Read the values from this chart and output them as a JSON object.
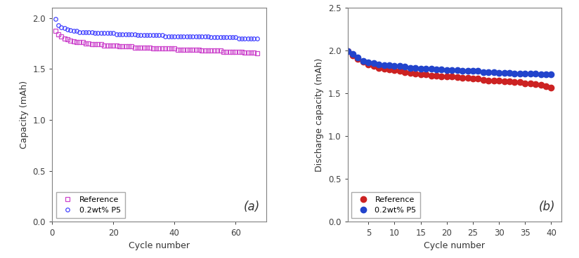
{
  "panel_a": {
    "ref_x": [
      1,
      2,
      3,
      4,
      5,
      6,
      7,
      8,
      9,
      10,
      11,
      12,
      13,
      14,
      15,
      16,
      17,
      18,
      19,
      20,
      21,
      22,
      23,
      24,
      25,
      26,
      27,
      28,
      29,
      30,
      31,
      32,
      33,
      34,
      35,
      36,
      37,
      38,
      39,
      40,
      41,
      42,
      43,
      44,
      45,
      46,
      47,
      48,
      49,
      50,
      51,
      52,
      53,
      54,
      55,
      56,
      57,
      58,
      59,
      60,
      61,
      62,
      63,
      64,
      65,
      66,
      67
    ],
    "ref_y": [
      1.87,
      1.84,
      1.82,
      1.8,
      1.79,
      1.78,
      1.77,
      1.76,
      1.76,
      1.76,
      1.75,
      1.75,
      1.74,
      1.74,
      1.74,
      1.74,
      1.73,
      1.73,
      1.73,
      1.73,
      1.73,
      1.72,
      1.72,
      1.72,
      1.72,
      1.72,
      1.71,
      1.71,
      1.71,
      1.71,
      1.71,
      1.71,
      1.7,
      1.7,
      1.7,
      1.7,
      1.7,
      1.7,
      1.7,
      1.7,
      1.69,
      1.69,
      1.69,
      1.69,
      1.69,
      1.69,
      1.69,
      1.69,
      1.68,
      1.68,
      1.68,
      1.68,
      1.68,
      1.68,
      1.68,
      1.67,
      1.67,
      1.67,
      1.67,
      1.67,
      1.67,
      1.67,
      1.66,
      1.66,
      1.66,
      1.66,
      1.65
    ],
    "p5_x": [
      1,
      2,
      3,
      4,
      5,
      6,
      7,
      8,
      9,
      10,
      11,
      12,
      13,
      14,
      15,
      16,
      17,
      18,
      19,
      20,
      21,
      22,
      23,
      24,
      25,
      26,
      27,
      28,
      29,
      30,
      31,
      32,
      33,
      34,
      35,
      36,
      37,
      38,
      39,
      40,
      41,
      42,
      43,
      44,
      45,
      46,
      47,
      48,
      49,
      50,
      51,
      52,
      53,
      54,
      55,
      56,
      57,
      58,
      59,
      60,
      61,
      62,
      63,
      64,
      65,
      66,
      67
    ],
    "p5_y": [
      1.99,
      1.93,
      1.91,
      1.9,
      1.89,
      1.88,
      1.87,
      1.87,
      1.86,
      1.86,
      1.86,
      1.86,
      1.86,
      1.85,
      1.85,
      1.85,
      1.85,
      1.85,
      1.85,
      1.85,
      1.84,
      1.84,
      1.84,
      1.84,
      1.84,
      1.84,
      1.84,
      1.83,
      1.83,
      1.83,
      1.83,
      1.83,
      1.83,
      1.83,
      1.83,
      1.83,
      1.82,
      1.82,
      1.82,
      1.82,
      1.82,
      1.82,
      1.82,
      1.82,
      1.82,
      1.82,
      1.82,
      1.82,
      1.82,
      1.82,
      1.82,
      1.81,
      1.81,
      1.81,
      1.81,
      1.81,
      1.81,
      1.81,
      1.81,
      1.81,
      1.8,
      1.8,
      1.8,
      1.8,
      1.8,
      1.8,
      1.8
    ],
    "ref_color": "#cc44cc",
    "p5_color": "#4444ff",
    "ref_marker": "s",
    "p5_marker": "o",
    "xlabel": "Cycle number",
    "ylabel": "Capacity (mAh)",
    "xlim": [
      0,
      70
    ],
    "ylim": [
      0.0,
      2.1
    ],
    "yticks": [
      0.0,
      0.5,
      1.0,
      1.5,
      2.0
    ],
    "xticks": [
      0,
      20,
      40,
      60
    ],
    "label_a": "(a)",
    "legend_ref": "Reference",
    "legend_p5": "0.2wt% P5"
  },
  "panel_b": {
    "ref_x": [
      1,
      2,
      3,
      4,
      5,
      6,
      7,
      8,
      9,
      10,
      11,
      12,
      13,
      14,
      15,
      16,
      17,
      18,
      19,
      20,
      21,
      22,
      23,
      24,
      25,
      26,
      27,
      28,
      29,
      30,
      31,
      32,
      33,
      34,
      35,
      36,
      37,
      38,
      39,
      40
    ],
    "ref_y": [
      1.99,
      1.94,
      1.9,
      1.87,
      1.84,
      1.82,
      1.8,
      1.79,
      1.78,
      1.77,
      1.76,
      1.75,
      1.74,
      1.73,
      1.72,
      1.72,
      1.71,
      1.71,
      1.7,
      1.7,
      1.7,
      1.69,
      1.68,
      1.68,
      1.67,
      1.67,
      1.66,
      1.65,
      1.65,
      1.65,
      1.64,
      1.64,
      1.63,
      1.63,
      1.62,
      1.62,
      1.61,
      1.6,
      1.58,
      1.57
    ],
    "p5_x": [
      1,
      2,
      3,
      4,
      5,
      6,
      7,
      8,
      9,
      10,
      11,
      12,
      13,
      14,
      15,
      16,
      17,
      18,
      19,
      20,
      21,
      22,
      23,
      24,
      25,
      26,
      27,
      28,
      29,
      30,
      31,
      32,
      33,
      34,
      35,
      36,
      37,
      38,
      39,
      40
    ],
    "p5_y": [
      1.99,
      1.96,
      1.92,
      1.88,
      1.86,
      1.85,
      1.84,
      1.83,
      1.83,
      1.82,
      1.82,
      1.81,
      1.8,
      1.8,
      1.79,
      1.79,
      1.79,
      1.78,
      1.78,
      1.77,
      1.77,
      1.77,
      1.76,
      1.76,
      1.76,
      1.76,
      1.75,
      1.75,
      1.75,
      1.74,
      1.74,
      1.74,
      1.73,
      1.73,
      1.73,
      1.73,
      1.73,
      1.72,
      1.72,
      1.72
    ],
    "ref_color": "#cc2222",
    "p5_color": "#2244cc",
    "ref_marker": "o",
    "p5_marker": "o",
    "xlabel": "Cycle number",
    "ylabel": "Discharge capacity (mAh)",
    "xlim": [
      1,
      42
    ],
    "ylim": [
      0.0,
      2.5
    ],
    "yticks": [
      0.0,
      0.5,
      1.0,
      1.5,
      2.0,
      2.5
    ],
    "xticks": [
      5,
      10,
      15,
      20,
      25,
      30,
      35,
      40
    ],
    "label_b": "(b)",
    "legend_ref": "Reference",
    "legend_p5": "0.2wt% P5"
  },
  "background_color": "#ffffff",
  "marker_size_a": 4,
  "marker_size_b": 6,
  "spine_color": "#808080",
  "tick_color": "#404040"
}
